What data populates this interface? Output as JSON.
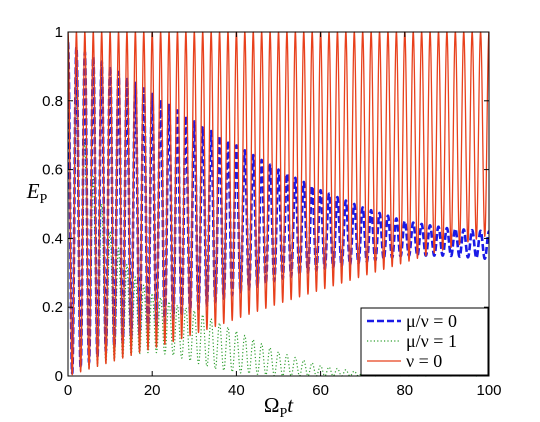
{
  "chart_data": {
    "type": "line",
    "xlabel": "ΩPt",
    "xlabel_parts": {
      "main": "Ω",
      "sub": "P",
      "tail": "t"
    },
    "ylabel": "EP",
    "ylabel_parts": {
      "main": "E",
      "sub": "P"
    },
    "xlim": [
      0,
      100
    ],
    "ylim": [
      0,
      1
    ],
    "xticks": [
      0,
      20,
      40,
      60,
      80,
      100
    ],
    "yticks": [
      0,
      0.2,
      0.4,
      0.6,
      0.8,
      1
    ],
    "xtick_labels": [
      "0",
      "20",
      "40",
      "60",
      "80",
      "100"
    ],
    "ytick_labels": [
      "0",
      "0.2",
      "0.4",
      "0.6",
      "0.8",
      "1"
    ],
    "grid": false,
    "legend_position": "bottom-right",
    "series": [
      {
        "name": "μ/ν = 0",
        "color": "#1a1ae6",
        "style": "dashed",
        "oscillation_period": 2.0,
        "envelope_x": [
          0,
          10,
          20,
          30,
          40,
          50,
          60,
          70,
          80,
          90,
          100
        ],
        "envelope_upper": [
          0.97,
          0.9,
          0.82,
          0.74,
          0.67,
          0.6,
          0.54,
          0.49,
          0.45,
          0.43,
          0.42
        ],
        "envelope_lower": [
          0.0,
          0.08,
          0.14,
          0.19,
          0.24,
          0.28,
          0.31,
          0.33,
          0.35,
          0.35,
          0.34
        ]
      },
      {
        "name": "μ/ν = 1",
        "color": "#2e9e2e",
        "style": "dotted",
        "oscillation_period": 2.0,
        "envelope_x": [
          0,
          5,
          10,
          15,
          20,
          25,
          30,
          35,
          40,
          45,
          50,
          55,
          60,
          65,
          70,
          75,
          80,
          85,
          90,
          95,
          100
        ],
        "envelope_upper": [
          0.95,
          0.62,
          0.42,
          0.3,
          0.24,
          0.21,
          0.19,
          0.16,
          0.13,
          0.1,
          0.07,
          0.05,
          0.03,
          0.02,
          0.01,
          0.01,
          0.01,
          0.005,
          0.005,
          0.003,
          0.003
        ],
        "envelope_lower": [
          0.0,
          0.02,
          0.04,
          0.06,
          0.07,
          0.06,
          0.04,
          0.02,
          0.01,
          0.005,
          0,
          0,
          0,
          0,
          0,
          0,
          0,
          0,
          0,
          0,
          0
        ]
      },
      {
        "name": "ν = 0",
        "color": "#e8401c",
        "style": "solid",
        "oscillation_period": 2.0,
        "envelope_x": [
          0,
          25,
          50,
          75,
          100
        ],
        "envelope_upper": [
          1.0,
          1.0,
          1.0,
          1.0,
          1.0
        ],
        "envelope_lower": [
          0.0,
          0.1,
          0.21,
          0.31,
          0.41
        ]
      }
    ],
    "legend": [
      {
        "label": "μ/ν = 0",
        "main": "μ/ν = 0",
        "color": "#1a1ae6",
        "style": "dashed"
      },
      {
        "label": "μ/ν = 1",
        "main": "μ/ν = 1",
        "color": "#2e9e2e",
        "style": "dotted"
      },
      {
        "label": "ν = 0",
        "main": "ν = 0",
        "color": "#e8401c",
        "style": "solid"
      }
    ]
  }
}
